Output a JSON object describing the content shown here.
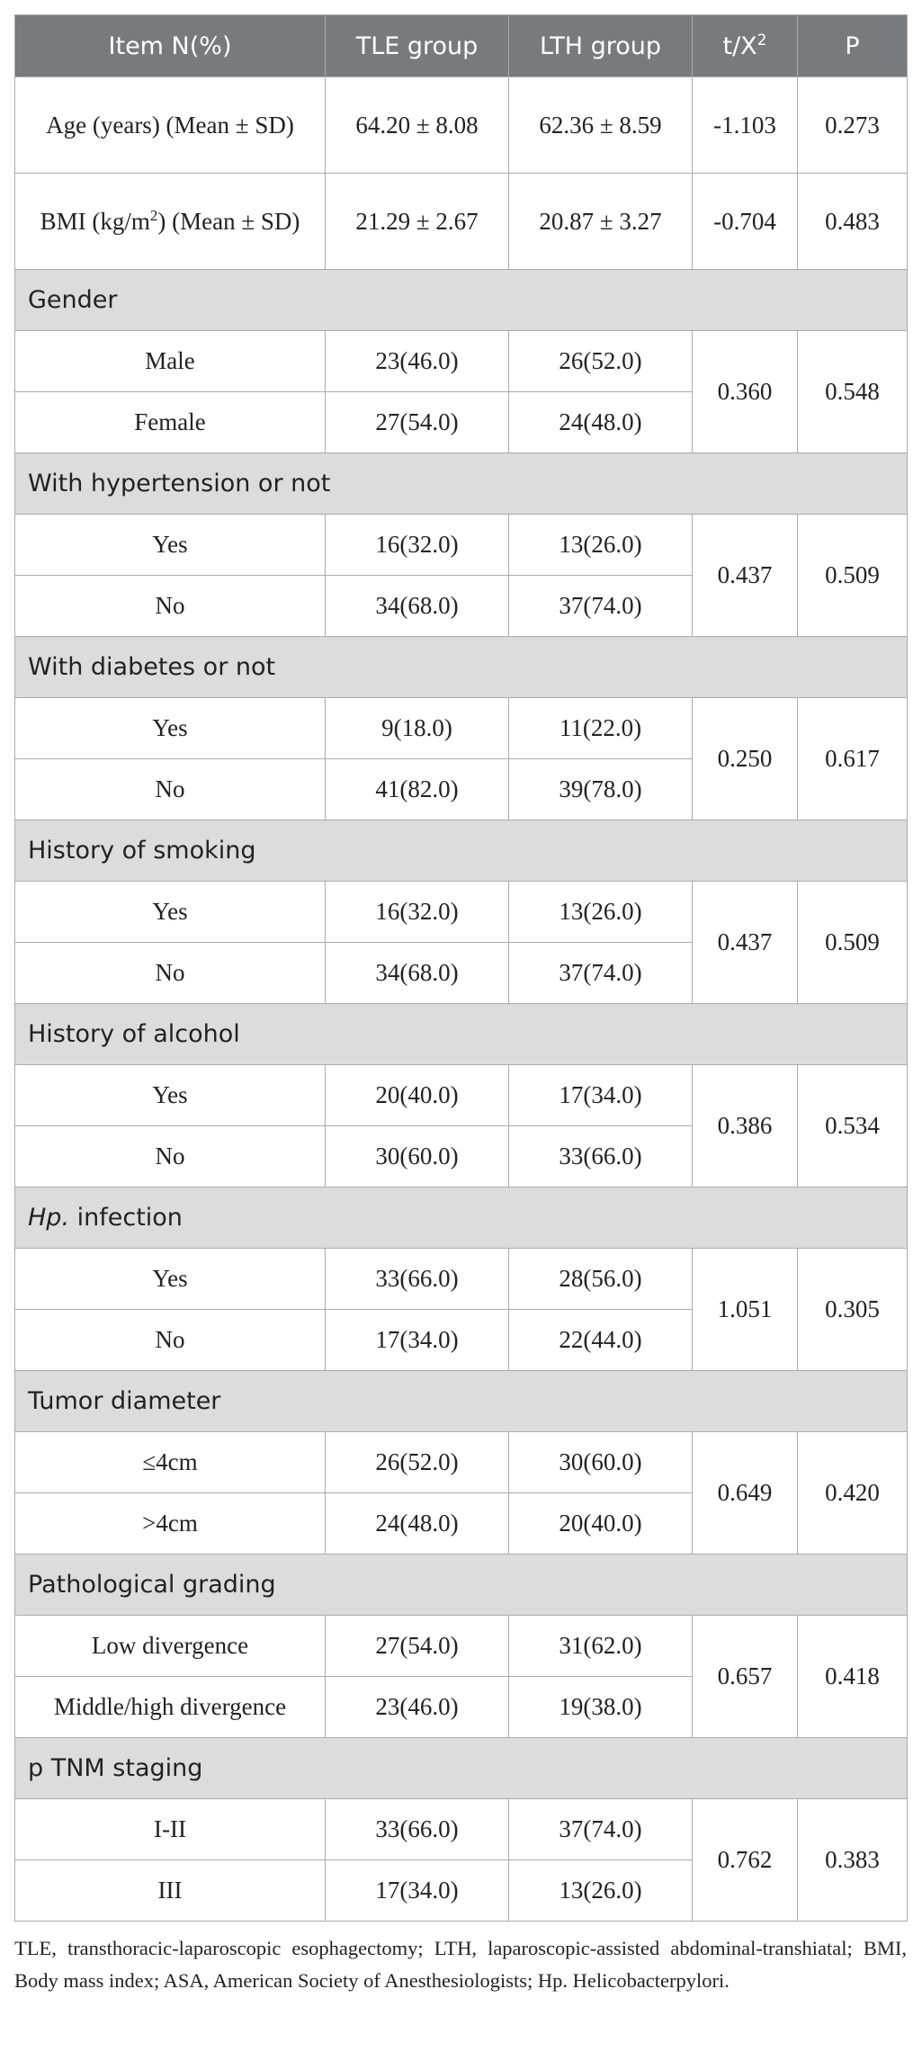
{
  "header": {
    "item": "Item N(%)",
    "tle": "TLE group",
    "lth": "LTH group",
    "stat_base": "t/X",
    "stat_sup": "2",
    "p": "P"
  },
  "rows_top": [
    {
      "item": "Age (years) (Mean ± SD)",
      "tle": "64.20 ± 8.08",
      "lth": "62.36 ± 8.59",
      "stat": "-1.103",
      "p": "0.273"
    },
    {
      "item_pre": "BMI (kg/m",
      "item_sup": "2",
      "item_post": ") (Mean ± SD)",
      "tle": "21.29 ± 2.67",
      "lth": "20.87 ± 3.27",
      "stat": "-0.704",
      "p": "0.483"
    }
  ],
  "sections": [
    {
      "title": "Gender",
      "stat": "0.360",
      "p": "0.548",
      "rows": [
        {
          "label": "Male",
          "tle": "23(46.0)",
          "lth": "26(52.0)"
        },
        {
          "label": "Female",
          "tle": "27(54.0)",
          "lth": "24(48.0)"
        }
      ]
    },
    {
      "title": "With hypertension or not",
      "stat": "0.437",
      "p": "0.509",
      "rows": [
        {
          "label": "Yes",
          "tle": "16(32.0)",
          "lth": "13(26.0)"
        },
        {
          "label": "No",
          "tle": "34(68.0)",
          "lth": "37(74.0)"
        }
      ]
    },
    {
      "title": "With diabetes or not",
      "stat": "0.250",
      "p": "0.617",
      "rows": [
        {
          "label": "Yes",
          "tle": "9(18.0)",
          "lth": "11(22.0)"
        },
        {
          "label": "No",
          "tle": "41(82.0)",
          "lth": "39(78.0)"
        }
      ]
    },
    {
      "title": "History of smoking",
      "stat": "0.437",
      "p": "0.509",
      "rows": [
        {
          "label": "Yes",
          "tle": "16(32.0)",
          "lth": "13(26.0)"
        },
        {
          "label": "No",
          "tle": "34(68.0)",
          "lth": "37(74.0)"
        }
      ]
    },
    {
      "title": "History of alcohol",
      "stat": "0.386",
      "p": "0.534",
      "rows": [
        {
          "label": "Yes",
          "tle": "20(40.0)",
          "lth": "17(34.0)"
        },
        {
          "label": "No",
          "tle": "30(60.0)",
          "lth": "33(66.0)"
        }
      ]
    },
    {
      "title_italic": "Hp.",
      "title_rest": " infection",
      "stat": "1.051",
      "p": "0.305",
      "rows": [
        {
          "label": "Yes",
          "tle": "33(66.0)",
          "lth": "28(56.0)"
        },
        {
          "label": "No",
          "tle": "17(34.0)",
          "lth": "22(44.0)"
        }
      ]
    },
    {
      "title": "Tumor diameter",
      "stat": "0.649",
      "p": "0.420",
      "rows": [
        {
          "label": "≤4cm",
          "tle": "26(52.0)",
          "lth": "30(60.0)"
        },
        {
          "label": ">4cm",
          "tle": "24(48.0)",
          "lth": "20(40.0)"
        }
      ]
    },
    {
      "title": "Pathological grading",
      "stat": "0.657",
      "p": "0.418",
      "rows": [
        {
          "label": "Low divergence",
          "tle": "27(54.0)",
          "lth": "31(62.0)"
        },
        {
          "label": "Middle/high divergence",
          "tle": "23(46.0)",
          "lth": "19(38.0)"
        }
      ]
    },
    {
      "title": "p TNM staging",
      "stat": "0.762",
      "p": "0.383",
      "rows": [
        {
          "label": "I-II",
          "tle": "33(66.0)",
          "lth": "37(74.0)"
        },
        {
          "label": "III",
          "tle": "17(34.0)",
          "lth": "13(26.0)"
        }
      ]
    }
  ],
  "footnote": "TLE, transthoracic-laparoscopic esophagectomy; LTH, laparoscopic-assisted abdominal-transhiatal; BMI, Body mass index; ASA, American Society of Anesthesiologists; Hp. Helicobacterpylori."
}
